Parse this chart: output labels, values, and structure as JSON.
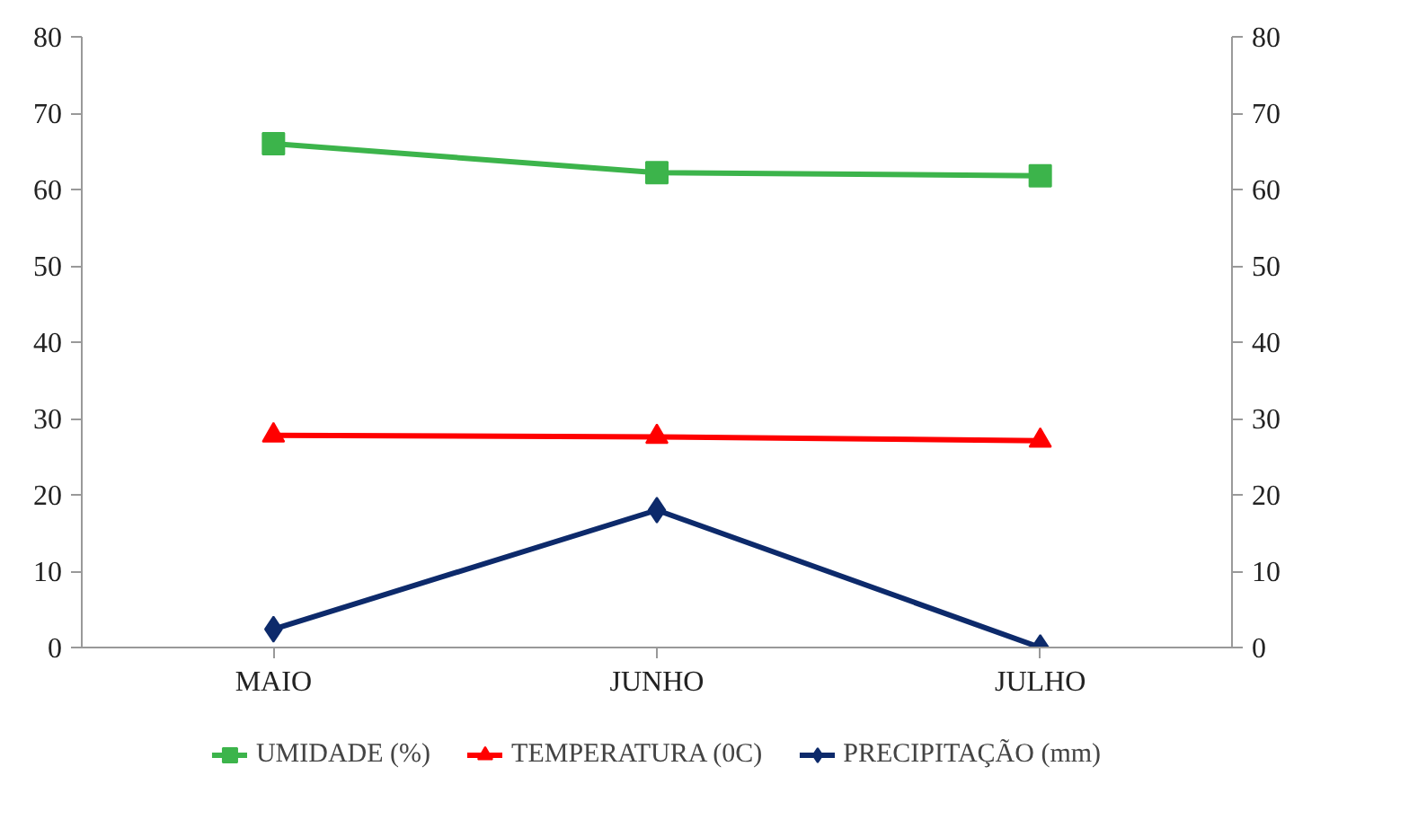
{
  "chart_data": {
    "type": "line",
    "categories": [
      "MAIO",
      "JUNHO",
      "JULHO"
    ],
    "series": [
      {
        "name": "UMIDADE (%)",
        "color": "#3cb44b",
        "marker": "square",
        "values": [
          66.0,
          62.2,
          61.8
        ]
      },
      {
        "name": "TEMPERATURA (0C)",
        "color": "#ff0000",
        "marker": "triangle",
        "values": [
          27.8,
          27.6,
          27.1
        ]
      },
      {
        "name": "PRECIPITAÇÃO (mm)",
        "color": "#0d2a6b",
        "marker": "diamond",
        "values": [
          2.4,
          18.0,
          0.0
        ]
      }
    ],
    "ylim": [
      0,
      80
    ],
    "yticks": [
      0,
      10,
      20,
      30,
      40,
      50,
      60,
      70,
      80
    ],
    "y2lim": [
      0,
      80
    ],
    "y2ticks": [
      0,
      10,
      20,
      30,
      40,
      50,
      60,
      70,
      80
    ],
    "grid": false,
    "legend": "bottom",
    "line_style": "solid"
  }
}
